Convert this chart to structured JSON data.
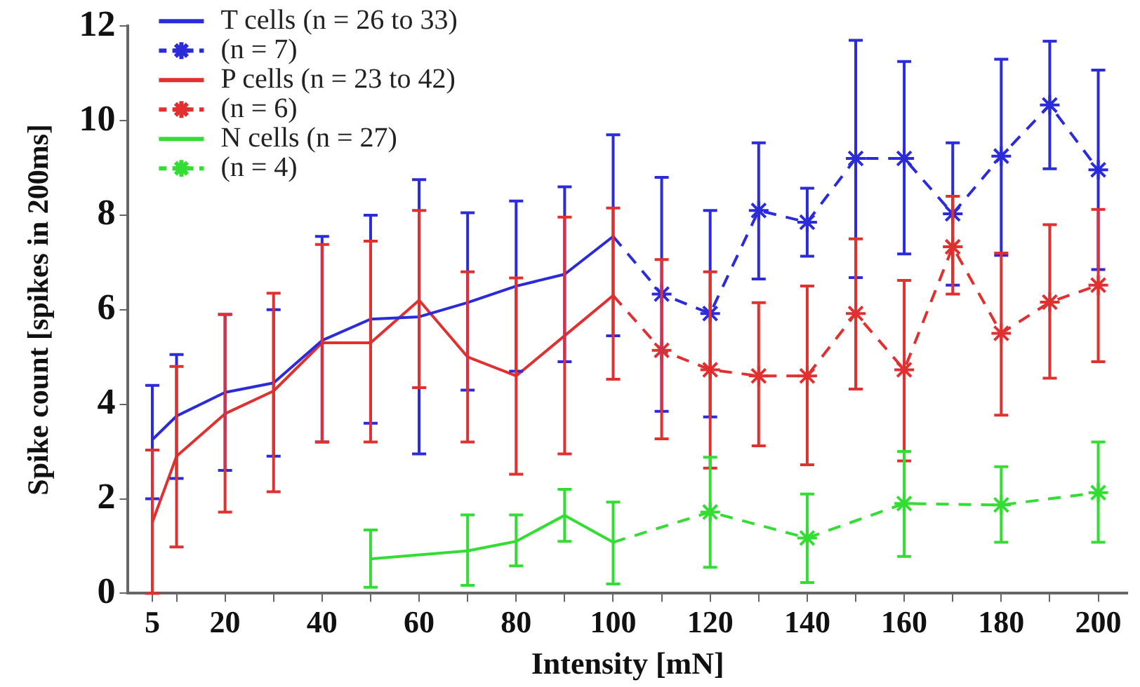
{
  "chart_data": {
    "type": "line",
    "xlabel": "Intensity [mN]",
    "ylabel": "Spike count [spikes in 200ms]",
    "xlim": [
      0,
      206
    ],
    "ylim": [
      0,
      12
    ],
    "xticks": [
      5,
      {
        "value": 10,
        "label": null
      },
      20,
      {
        "value": 30,
        "label": null
      },
      40,
      {
        "value": 50,
        "label": null
      },
      60,
      {
        "value": 70,
        "label": null
      },
      80,
      {
        "value": 90,
        "label": null
      },
      100,
      {
        "value": 110,
        "label": null
      },
      120,
      {
        "value": 130,
        "label": null
      },
      140,
      {
        "value": 150,
        "label": null
      },
      160,
      {
        "value": 170,
        "label": null
      },
      180,
      {
        "value": 190,
        "label": null
      },
      200
    ],
    "yticks": [
      0,
      2,
      4,
      6,
      8,
      10,
      12
    ],
    "grid": false,
    "legend": "top left",
    "series": [
      {
        "name": "T cells (n = 26 to 33)",
        "color": "#2b2bdc",
        "line_style": "solid",
        "marker": "none",
        "x": [
          5,
          10,
          20,
          30,
          40,
          50,
          60,
          70,
          80,
          90,
          100
        ],
        "values": [
          3.25,
          3.75,
          4.25,
          4.45,
          5.35,
          5.8,
          5.85,
          6.15,
          6.5,
          6.75,
          7.55
        ],
        "errors": [
          [
            2.0,
            4.4
          ],
          [
            2.43,
            5.05
          ],
          [
            2.6,
            5.9
          ],
          [
            2.9,
            6.0
          ],
          [
            3.2,
            7.55
          ],
          [
            3.6,
            8.0
          ],
          [
            2.95,
            8.75
          ],
          [
            4.3,
            8.05
          ],
          [
            4.7,
            8.3
          ],
          [
            4.9,
            8.6
          ],
          [
            5.45,
            9.7
          ]
        ]
      },
      {
        "name": "(n = 7)",
        "color": "#2b2bdc",
        "line_style": "dashed",
        "marker": "cross",
        "x": [
          100,
          110,
          120,
          130,
          140,
          150,
          160,
          170,
          180,
          190,
          200
        ],
        "values": [
          7.55,
          6.33,
          5.92,
          8.1,
          7.85,
          9.2,
          9.2,
          8.03,
          9.25,
          10.33,
          8.96
        ],
        "errors": [
          null,
          [
            3.85,
            8.8
          ],
          [
            3.73,
            8.1
          ],
          [
            6.65,
            9.53
          ],
          [
            7.13,
            8.57
          ],
          [
            6.68,
            11.7
          ],
          [
            7.18,
            11.25
          ],
          [
            6.52,
            9.53
          ],
          [
            7.15,
            11.3
          ],
          [
            8.98,
            11.68
          ],
          [
            6.85,
            11.07
          ]
        ]
      },
      {
        "name": "P cells (n = 23 to 42)",
        "color": "#e03030",
        "line_style": "solid",
        "marker": "none",
        "x": [
          5,
          10,
          20,
          30,
          40,
          50,
          60,
          70,
          80,
          90,
          100
        ],
        "values": [
          1.5,
          2.9,
          3.8,
          4.28,
          5.3,
          5.3,
          6.2,
          5.0,
          4.6,
          5.45,
          6.3
        ],
        "errors": [
          [
            0,
            3.03
          ],
          [
            0.98,
            4.8
          ],
          [
            1.72,
            5.9
          ],
          [
            2.15,
            6.35
          ],
          [
            3.2,
            7.38
          ],
          [
            3.2,
            7.45
          ],
          [
            4.35,
            8.1
          ],
          [
            3.2,
            6.8
          ],
          [
            2.52,
            6.67
          ],
          [
            2.95,
            7.96
          ],
          [
            4.53,
            8.15
          ]
        ]
      },
      {
        "name": "(n = 6)",
        "color": "#e03030",
        "line_style": "dashed",
        "marker": "cross",
        "x": [
          100,
          110,
          120,
          130,
          140,
          150,
          160,
          170,
          180,
          190,
          200
        ],
        "values": [
          6.3,
          5.14,
          4.73,
          4.6,
          4.6,
          5.92,
          4.73,
          7.33,
          5.5,
          6.16,
          6.52
        ],
        "errors": [
          null,
          [
            3.27,
            7.06
          ],
          [
            2.65,
            6.8
          ],
          [
            3.12,
            6.15
          ],
          [
            2.72,
            6.5
          ],
          [
            4.32,
            7.5
          ],
          [
            2.8,
            6.62
          ],
          [
            6.33,
            8.4
          ],
          [
            3.77,
            7.2
          ],
          [
            4.55,
            7.8
          ],
          [
            4.9,
            8.12
          ]
        ]
      },
      {
        "name": "N cells (n = 27)",
        "color": "#33dd33",
        "line_style": "solid",
        "marker": "none",
        "x": [
          50,
          70,
          80,
          90,
          100
        ],
        "values": [
          0.73,
          0.9,
          1.1,
          1.65,
          1.08
        ],
        "errors": [
          [
            0.13,
            1.34
          ],
          [
            0.17,
            1.66
          ],
          [
            0.58,
            1.66
          ],
          [
            1.1,
            2.2
          ],
          [
            0.2,
            1.93
          ]
        ]
      },
      {
        "name": "(n = 4)",
        "color": "#33dd33",
        "line_style": "dashed",
        "marker": "cross",
        "x": [
          100,
          120,
          140,
          160,
          180,
          200
        ],
        "values": [
          1.08,
          1.72,
          1.17,
          1.9,
          1.87,
          2.13
        ],
        "errors": [
          null,
          [
            0.55,
            2.88
          ],
          [
            0.23,
            2.1
          ],
          [
            0.78,
            3.0
          ],
          [
            1.08,
            2.68
          ],
          [
            1.08,
            3.2
          ]
        ]
      }
    ]
  }
}
